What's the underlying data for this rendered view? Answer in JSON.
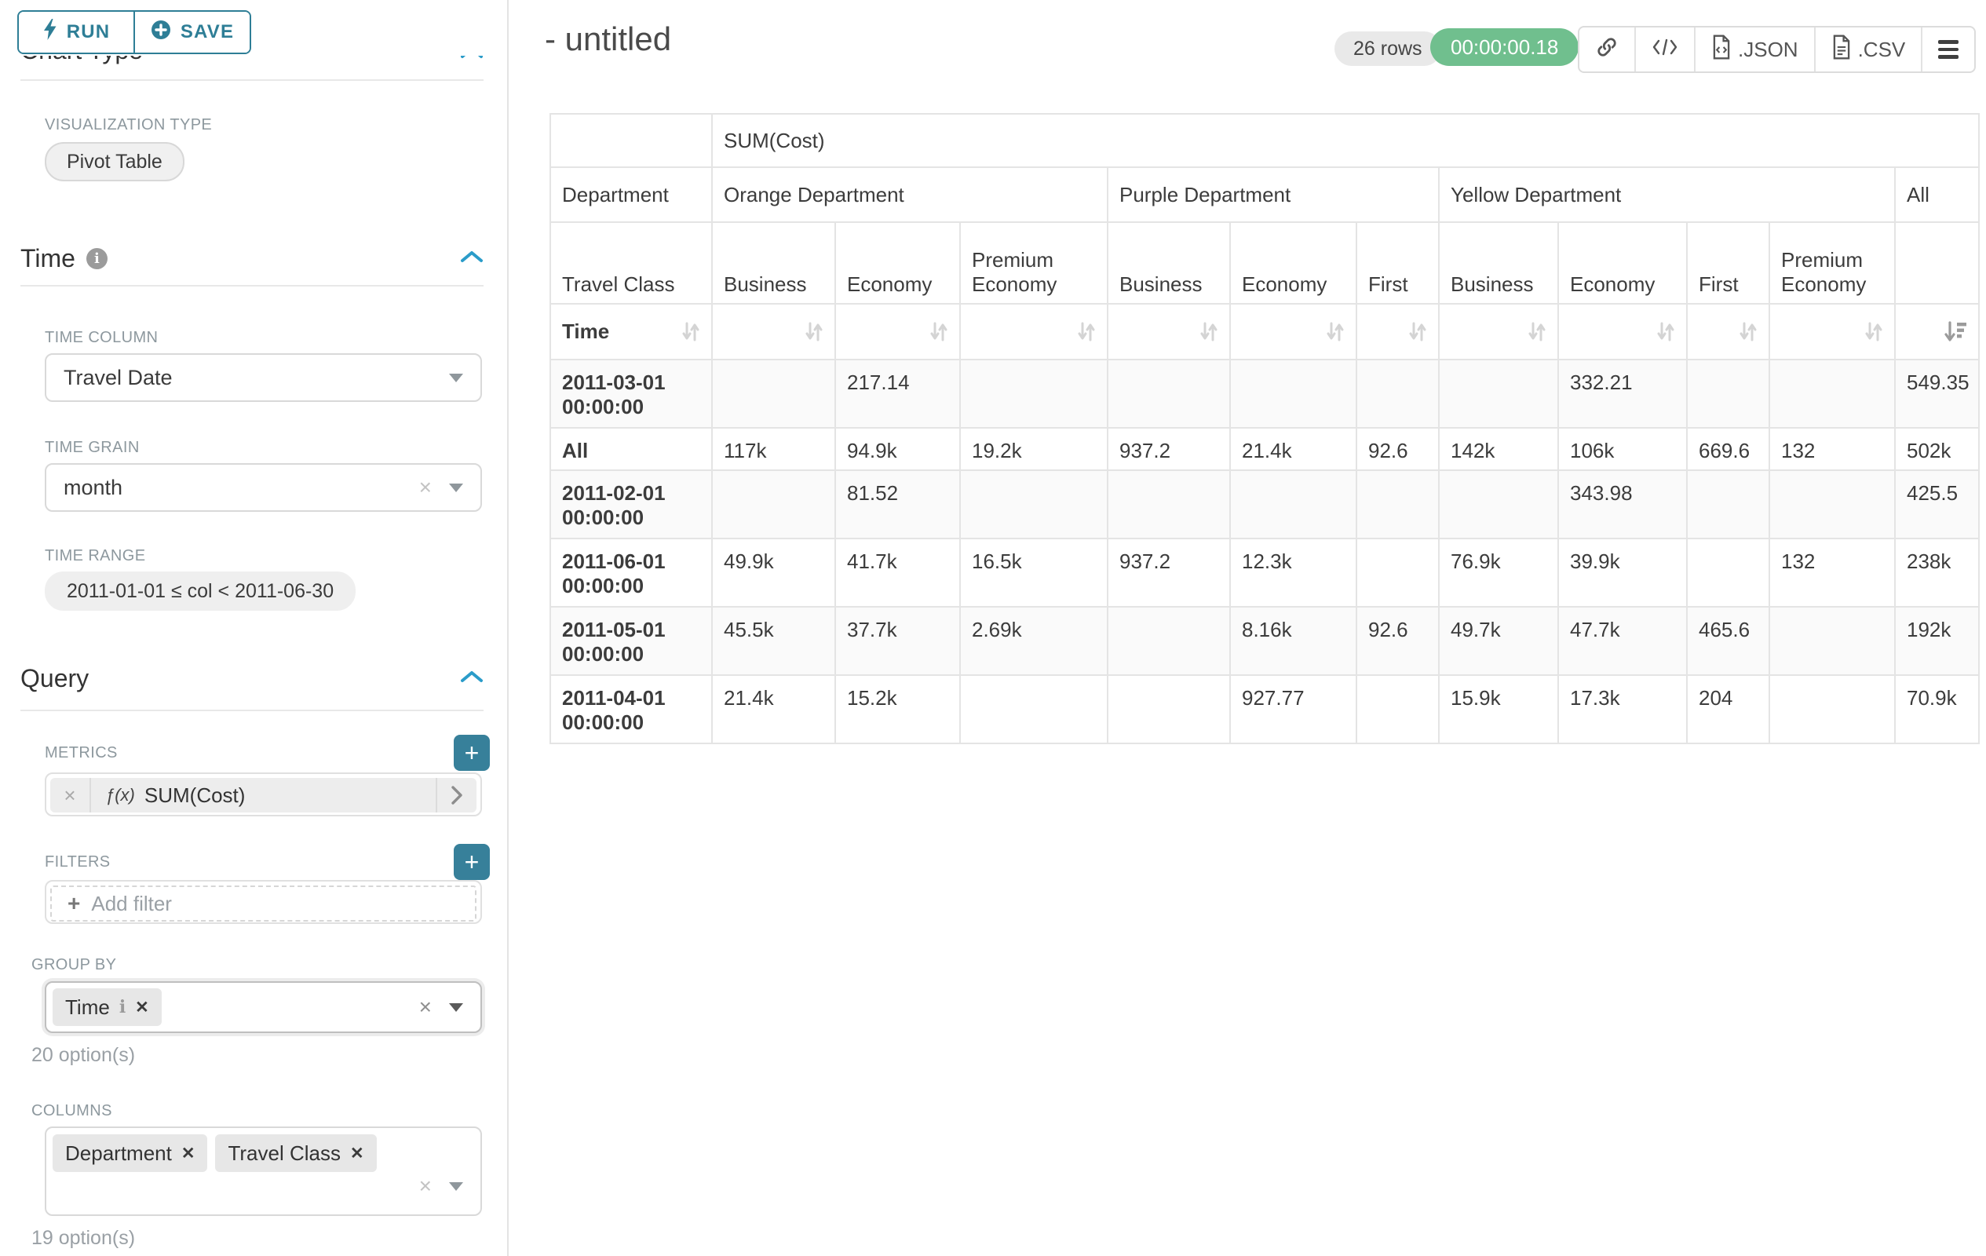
{
  "colors": {
    "accent_teal": "#2e7e96",
    "plus_button_teal": "#37809a",
    "chevron_blue": "#2b9cc9",
    "badge_green": "#70bf8e"
  },
  "sidebar": {
    "run_label": "RUN",
    "save_label": "SAVE",
    "chart_type_heading": "Chart Type",
    "viz_type_label": "VISUALIZATION TYPE",
    "viz_type_value": "Pivot Table",
    "time": {
      "title": "Time",
      "time_column_label": "TIME COLUMN",
      "time_column_value": "Travel Date",
      "time_grain_label": "TIME GRAIN",
      "time_grain_value": "month",
      "time_range_label": "TIME RANGE",
      "time_range_value": "2011-01-01 ≤ col < 2011-06-30"
    },
    "query": {
      "title": "Query",
      "metrics_label": "METRICS",
      "metric_fx": "ƒ(x)",
      "metric_value": "SUM(Cost)",
      "filters_label": "FILTERS",
      "add_filter_label": "Add filter",
      "group_by_label": "GROUP BY",
      "group_by_values": [
        "Time"
      ],
      "group_by_hint": "20 option(s)",
      "columns_label": "COLUMNS",
      "columns_values": [
        "Department",
        "Travel Class"
      ],
      "columns_hint": "19 option(s)"
    }
  },
  "header": {
    "title": "- untitled",
    "rows_badge": "26 rows",
    "duration_badge": "00:00:00.18",
    "json_label": ".JSON",
    "csv_label": ".CSV"
  },
  "pivot_table": {
    "metric_header": "SUM(Cost)",
    "row_dims": [
      "Department",
      "Travel Class",
      "Time"
    ],
    "column_groups": [
      {
        "label": "Orange Department",
        "children": [
          "Business",
          "Economy",
          "Premium Economy"
        ]
      },
      {
        "label": "Purple Department",
        "children": [
          "Business",
          "Economy",
          "First"
        ]
      },
      {
        "label": "Yellow Department",
        "children": [
          "Business",
          "Economy",
          "First",
          "Premium Economy"
        ]
      },
      {
        "label": "All",
        "children": [
          ""
        ]
      }
    ],
    "rows": [
      {
        "label": "2011-03-01 00:00:00",
        "values": [
          "",
          "217.14",
          "",
          "",
          "",
          "",
          "",
          "332.21",
          "",
          "",
          "549.35"
        ]
      },
      {
        "label": "All",
        "values": [
          "117k",
          "94.9k",
          "19.2k",
          "937.2",
          "21.4k",
          "92.6",
          "142k",
          "106k",
          "669.6",
          "132",
          "502k"
        ]
      },
      {
        "label": "2011-02-01 00:00:00",
        "values": [
          "",
          "81.52",
          "",
          "",
          "",
          "",
          "",
          "343.98",
          "",
          "",
          "425.5"
        ]
      },
      {
        "label": "2011-06-01 00:00:00",
        "values": [
          "49.9k",
          "41.7k",
          "16.5k",
          "937.2",
          "12.3k",
          "",
          "76.9k",
          "39.9k",
          "",
          "132",
          "238k"
        ]
      },
      {
        "label": "2011-05-01 00:00:00",
        "values": [
          "45.5k",
          "37.7k",
          "2.69k",
          "",
          "8.16k",
          "92.6",
          "49.7k",
          "47.7k",
          "465.6",
          "",
          "192k"
        ]
      },
      {
        "label": "2011-04-01 00:00:00",
        "values": [
          "21.4k",
          "15.2k",
          "",
          "",
          "927.77",
          "",
          "15.9k",
          "17.3k",
          "204",
          "",
          "70.9k"
        ]
      }
    ]
  }
}
